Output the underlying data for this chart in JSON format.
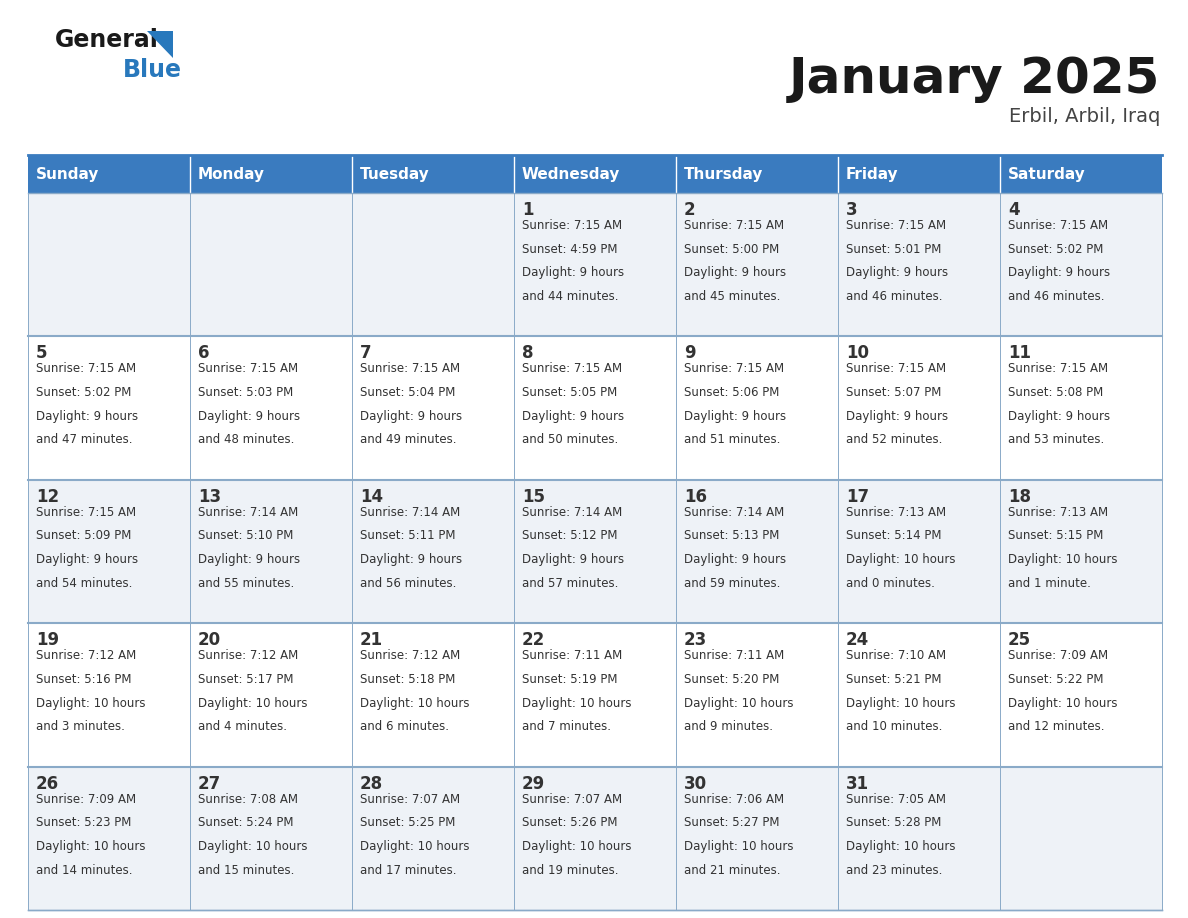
{
  "title": "January 2025",
  "subtitle": "Erbil, Arbil, Iraq",
  "days_of_week": [
    "Sunday",
    "Monday",
    "Tuesday",
    "Wednesday",
    "Thursday",
    "Friday",
    "Saturday"
  ],
  "header_bg": "#3a7bbf",
  "header_text": "#ffffff",
  "row_bg_even": "#eef2f7",
  "row_bg_odd": "#ffffff",
  "cell_text": "#333333",
  "title_color": "#1a1a1a",
  "subtitle_color": "#444444",
  "border_color": "#8aaac8",
  "calendar": [
    [
      {
        "day": "",
        "sunrise": "",
        "sunset": "",
        "daylight_line1": "",
        "daylight_line2": ""
      },
      {
        "day": "",
        "sunrise": "",
        "sunset": "",
        "daylight_line1": "",
        "daylight_line2": ""
      },
      {
        "day": "",
        "sunrise": "",
        "sunset": "",
        "daylight_line1": "",
        "daylight_line2": ""
      },
      {
        "day": "1",
        "sunrise": "7:15 AM",
        "sunset": "4:59 PM",
        "daylight_line1": "Daylight: 9 hours",
        "daylight_line2": "and 44 minutes."
      },
      {
        "day": "2",
        "sunrise": "7:15 AM",
        "sunset": "5:00 PM",
        "daylight_line1": "Daylight: 9 hours",
        "daylight_line2": "and 45 minutes."
      },
      {
        "day": "3",
        "sunrise": "7:15 AM",
        "sunset": "5:01 PM",
        "daylight_line1": "Daylight: 9 hours",
        "daylight_line2": "and 46 minutes."
      },
      {
        "day": "4",
        "sunrise": "7:15 AM",
        "sunset": "5:02 PM",
        "daylight_line1": "Daylight: 9 hours",
        "daylight_line2": "and 46 minutes."
      }
    ],
    [
      {
        "day": "5",
        "sunrise": "7:15 AM",
        "sunset": "5:02 PM",
        "daylight_line1": "Daylight: 9 hours",
        "daylight_line2": "and 47 minutes."
      },
      {
        "day": "6",
        "sunrise": "7:15 AM",
        "sunset": "5:03 PM",
        "daylight_line1": "Daylight: 9 hours",
        "daylight_line2": "and 48 minutes."
      },
      {
        "day": "7",
        "sunrise": "7:15 AM",
        "sunset": "5:04 PM",
        "daylight_line1": "Daylight: 9 hours",
        "daylight_line2": "and 49 minutes."
      },
      {
        "day": "8",
        "sunrise": "7:15 AM",
        "sunset": "5:05 PM",
        "daylight_line1": "Daylight: 9 hours",
        "daylight_line2": "and 50 minutes."
      },
      {
        "day": "9",
        "sunrise": "7:15 AM",
        "sunset": "5:06 PM",
        "daylight_line1": "Daylight: 9 hours",
        "daylight_line2": "and 51 minutes."
      },
      {
        "day": "10",
        "sunrise": "7:15 AM",
        "sunset": "5:07 PM",
        "daylight_line1": "Daylight: 9 hours",
        "daylight_line2": "and 52 minutes."
      },
      {
        "day": "11",
        "sunrise": "7:15 AM",
        "sunset": "5:08 PM",
        "daylight_line1": "Daylight: 9 hours",
        "daylight_line2": "and 53 minutes."
      }
    ],
    [
      {
        "day": "12",
        "sunrise": "7:15 AM",
        "sunset": "5:09 PM",
        "daylight_line1": "Daylight: 9 hours",
        "daylight_line2": "and 54 minutes."
      },
      {
        "day": "13",
        "sunrise": "7:14 AM",
        "sunset": "5:10 PM",
        "daylight_line1": "Daylight: 9 hours",
        "daylight_line2": "and 55 minutes."
      },
      {
        "day": "14",
        "sunrise": "7:14 AM",
        "sunset": "5:11 PM",
        "daylight_line1": "Daylight: 9 hours",
        "daylight_line2": "and 56 minutes."
      },
      {
        "day": "15",
        "sunrise": "7:14 AM",
        "sunset": "5:12 PM",
        "daylight_line1": "Daylight: 9 hours",
        "daylight_line2": "and 57 minutes."
      },
      {
        "day": "16",
        "sunrise": "7:14 AM",
        "sunset": "5:13 PM",
        "daylight_line1": "Daylight: 9 hours",
        "daylight_line2": "and 59 minutes."
      },
      {
        "day": "17",
        "sunrise": "7:13 AM",
        "sunset": "5:14 PM",
        "daylight_line1": "Daylight: 10 hours",
        "daylight_line2": "and 0 minutes."
      },
      {
        "day": "18",
        "sunrise": "7:13 AM",
        "sunset": "5:15 PM",
        "daylight_line1": "Daylight: 10 hours",
        "daylight_line2": "and 1 minute."
      }
    ],
    [
      {
        "day": "19",
        "sunrise": "7:12 AM",
        "sunset": "5:16 PM",
        "daylight_line1": "Daylight: 10 hours",
        "daylight_line2": "and 3 minutes."
      },
      {
        "day": "20",
        "sunrise": "7:12 AM",
        "sunset": "5:17 PM",
        "daylight_line1": "Daylight: 10 hours",
        "daylight_line2": "and 4 minutes."
      },
      {
        "day": "21",
        "sunrise": "7:12 AM",
        "sunset": "5:18 PM",
        "daylight_line1": "Daylight: 10 hours",
        "daylight_line2": "and 6 minutes."
      },
      {
        "day": "22",
        "sunrise": "7:11 AM",
        "sunset": "5:19 PM",
        "daylight_line1": "Daylight: 10 hours",
        "daylight_line2": "and 7 minutes."
      },
      {
        "day": "23",
        "sunrise": "7:11 AM",
        "sunset": "5:20 PM",
        "daylight_line1": "Daylight: 10 hours",
        "daylight_line2": "and 9 minutes."
      },
      {
        "day": "24",
        "sunrise": "7:10 AM",
        "sunset": "5:21 PM",
        "daylight_line1": "Daylight: 10 hours",
        "daylight_line2": "and 10 minutes."
      },
      {
        "day": "25",
        "sunrise": "7:09 AM",
        "sunset": "5:22 PM",
        "daylight_line1": "Daylight: 10 hours",
        "daylight_line2": "and 12 minutes."
      }
    ],
    [
      {
        "day": "26",
        "sunrise": "7:09 AM",
        "sunset": "5:23 PM",
        "daylight_line1": "Daylight: 10 hours",
        "daylight_line2": "and 14 minutes."
      },
      {
        "day": "27",
        "sunrise": "7:08 AM",
        "sunset": "5:24 PM",
        "daylight_line1": "Daylight: 10 hours",
        "daylight_line2": "and 15 minutes."
      },
      {
        "day": "28",
        "sunrise": "7:07 AM",
        "sunset": "5:25 PM",
        "daylight_line1": "Daylight: 10 hours",
        "daylight_line2": "and 17 minutes."
      },
      {
        "day": "29",
        "sunrise": "7:07 AM",
        "sunset": "5:26 PM",
        "daylight_line1": "Daylight: 10 hours",
        "daylight_line2": "and 19 minutes."
      },
      {
        "day": "30",
        "sunrise": "7:06 AM",
        "sunset": "5:27 PM",
        "daylight_line1": "Daylight: 10 hours",
        "daylight_line2": "and 21 minutes."
      },
      {
        "day": "31",
        "sunrise": "7:05 AM",
        "sunset": "5:28 PM",
        "daylight_line1": "Daylight: 10 hours",
        "daylight_line2": "and 23 minutes."
      },
      {
        "day": "",
        "sunrise": "",
        "sunset": "",
        "daylight_line1": "",
        "daylight_line2": ""
      }
    ]
  ],
  "logo_general_color": "#1a1a1a",
  "logo_blue_color": "#2878bc",
  "logo_triangle_color": "#2878bc"
}
